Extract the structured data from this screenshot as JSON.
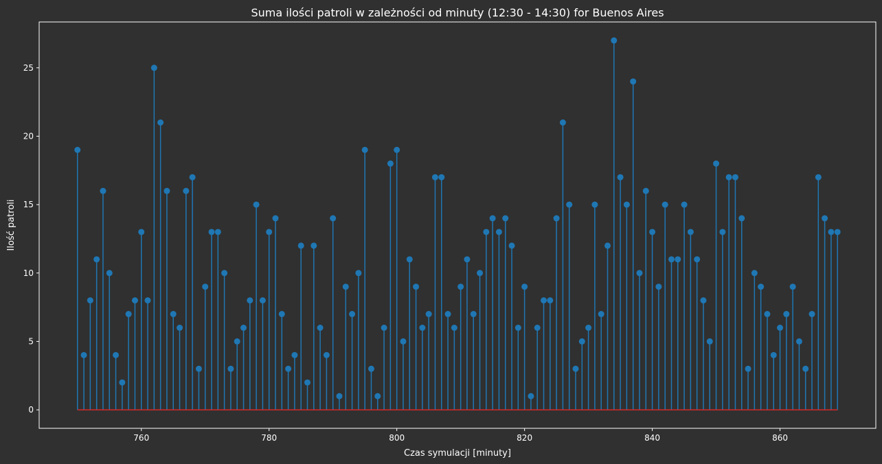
{
  "chart_data": {
    "type": "stem",
    "title": "Suma ilości patroli w zależności od minuty (12:30 - 14:30) for Buenos Aires",
    "xlabel": "Czas symulacji [minuty]",
    "ylabel": "Ilość patroli",
    "x_start": 750,
    "x_end": 869,
    "xlim": [
      744,
      875
    ],
    "ylim": [
      -1.35,
      28.35
    ],
    "xticks": [
      760,
      780,
      800,
      820,
      840,
      860
    ],
    "yticks": [
      0,
      5,
      10,
      15,
      20,
      25
    ],
    "grid": false,
    "legend": "none",
    "values": [
      19,
      4,
      8,
      11,
      16,
      10,
      4,
      2,
      7,
      8,
      13,
      8,
      25,
      21,
      16,
      7,
      6,
      16,
      17,
      3,
      9,
      13,
      13,
      10,
      3,
      5,
      6,
      8,
      15,
      8,
      13,
      14,
      7,
      3,
      4,
      12,
      2,
      12,
      6,
      4,
      14,
      1,
      9,
      7,
      10,
      19,
      3,
      1,
      6,
      18,
      19,
      5,
      11,
      9,
      6,
      7,
      17,
      17,
      7,
      6,
      9,
      11,
      7,
      10,
      13,
      14,
      13,
      14,
      12,
      6,
      9,
      1,
      6,
      8,
      8,
      14,
      21,
      15,
      3,
      5,
      6,
      15,
      7,
      12,
      27,
      17,
      15,
      24,
      10,
      16,
      13,
      9,
      15,
      11,
      11,
      15,
      13,
      11,
      8,
      5,
      18,
      13,
      17,
      17,
      14,
      3,
      10,
      9,
      7,
      4,
      6,
      7,
      9,
      5,
      3,
      7,
      17,
      14,
      13,
      13
    ],
    "colors": {
      "background": "#303030",
      "stem": "#1f77b4",
      "baseline": "#d62728",
      "axes": "#ffffff",
      "text": "#ffffff"
    }
  }
}
